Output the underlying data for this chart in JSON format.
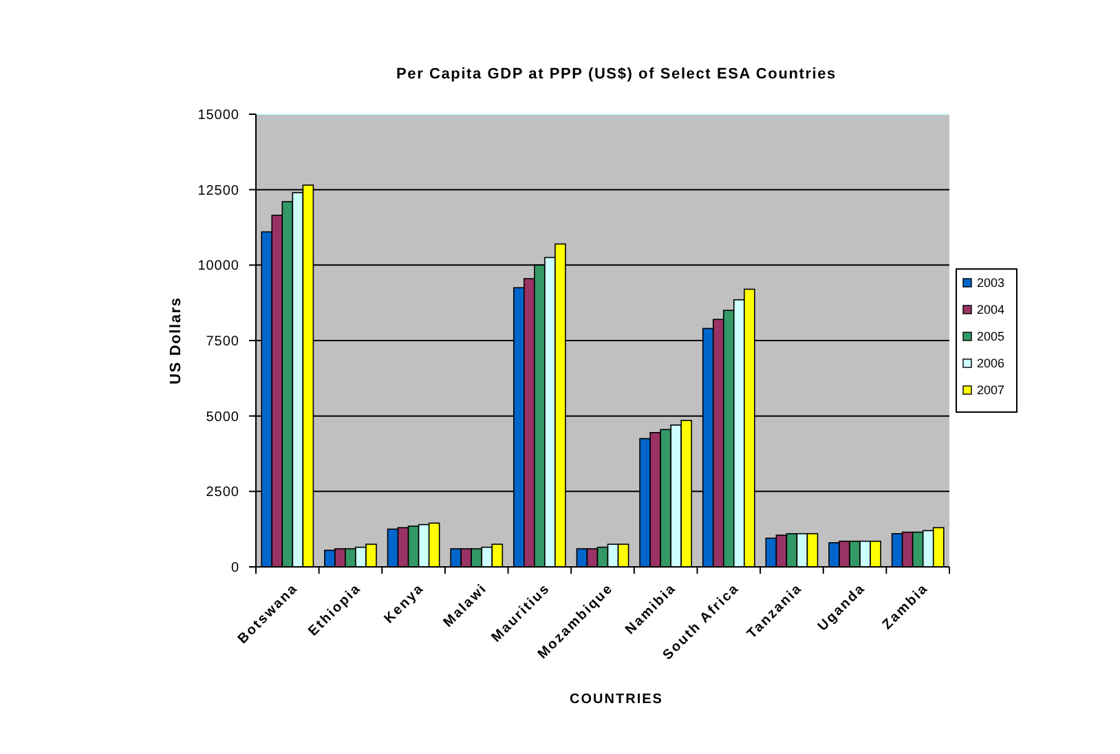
{
  "chart_data": {
    "type": "bar",
    "title": "Per Capita GDP at PPP (US$) of Select ESA Countries",
    "xlabel": "COUNTRIES",
    "ylabel": "US Dollars",
    "categories": [
      "Botswana",
      "Ethiopia",
      "Kenya",
      "Malawi",
      "Mauritius",
      "Mozambique",
      "Namibia",
      "South Africa",
      "Tanzania",
      "Uganda",
      "Zambia"
    ],
    "series": [
      {
        "name": "2003",
        "color": "#0066cc",
        "values": [
          11100,
          550,
          1250,
          600,
          9250,
          600,
          4250,
          7900,
          950,
          800,
          1100
        ]
      },
      {
        "name": "2004",
        "color": "#993366",
        "values": [
          11650,
          600,
          1300,
          600,
          9550,
          600,
          4450,
          8200,
          1050,
          850,
          1150
        ]
      },
      {
        "name": "2005",
        "color": "#339966",
        "values": [
          12100,
          600,
          1350,
          600,
          10000,
          650,
          4550,
          8500,
          1100,
          850,
          1150
        ]
      },
      {
        "name": "2006",
        "color": "#ccffff",
        "values": [
          12400,
          650,
          1400,
          650,
          10250,
          750,
          4700,
          8850,
          1100,
          850,
          1200
        ]
      },
      {
        "name": "2007",
        "color": "#ffff00",
        "values": [
          12650,
          750,
          1450,
          750,
          10700,
          750,
          4850,
          9200,
          1100,
          850,
          1300
        ]
      }
    ],
    "ylim": [
      0,
      15000
    ],
    "yticks": [
      0,
      2500,
      5000,
      7500,
      10000,
      12500,
      15000
    ],
    "grid": "y",
    "legend": "right"
  }
}
